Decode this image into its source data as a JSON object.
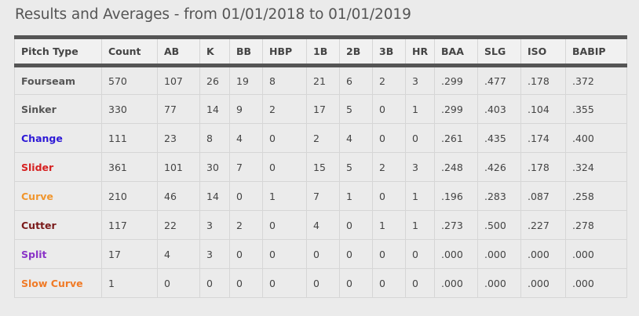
{
  "header": {
    "title": "Results and Averages - from 01/01/2018 to 01/01/2019"
  },
  "table": {
    "columns": [
      "Pitch Type",
      "Count",
      "AB",
      "K",
      "BB",
      "HBP",
      "1B",
      "2B",
      "3B",
      "HR",
      "BAA",
      "SLG",
      "ISO",
      "BABIP"
    ],
    "rows": [
      {
        "pitch": "Fourseam",
        "color": "#555555",
        "values": [
          "570",
          "107",
          "26",
          "19",
          "8",
          "21",
          "6",
          "2",
          "3",
          ".299",
          ".477",
          ".178",
          ".372"
        ]
      },
      {
        "pitch": "Sinker",
        "color": "#555555",
        "values": [
          "330",
          "77",
          "14",
          "9",
          "2",
          "17",
          "5",
          "0",
          "1",
          ".299",
          ".403",
          ".104",
          ".355"
        ]
      },
      {
        "pitch": "Change",
        "color": "#2d19d6",
        "values": [
          "111",
          "23",
          "8",
          "4",
          "0",
          "2",
          "4",
          "0",
          "0",
          ".261",
          ".435",
          ".174",
          ".400"
        ]
      },
      {
        "pitch": "Slider",
        "color": "#d62020",
        "values": [
          "361",
          "101",
          "30",
          "7",
          "0",
          "15",
          "5",
          "2",
          "3",
          ".248",
          ".426",
          ".178",
          ".324"
        ]
      },
      {
        "pitch": "Curve",
        "color": "#f0962e",
        "values": [
          "210",
          "46",
          "14",
          "0",
          "1",
          "7",
          "1",
          "0",
          "1",
          ".196",
          ".283",
          ".087",
          ".258"
        ]
      },
      {
        "pitch": "Cutter",
        "color": "#7a1a1a",
        "values": [
          "117",
          "22",
          "3",
          "2",
          "0",
          "4",
          "0",
          "1",
          "1",
          ".273",
          ".500",
          ".227",
          ".278"
        ]
      },
      {
        "pitch": "Split",
        "color": "#8a33c7",
        "values": [
          "17",
          "4",
          "3",
          "0",
          "0",
          "0",
          "0",
          "0",
          "0",
          ".000",
          ".000",
          ".000",
          ".000"
        ]
      },
      {
        "pitch": "Slow Curve",
        "color": "#f07a26",
        "values": [
          "1",
          "0",
          "0",
          "0",
          "0",
          "0",
          "0",
          "0",
          "0",
          ".000",
          ".000",
          ".000",
          ".000"
        ]
      }
    ]
  }
}
